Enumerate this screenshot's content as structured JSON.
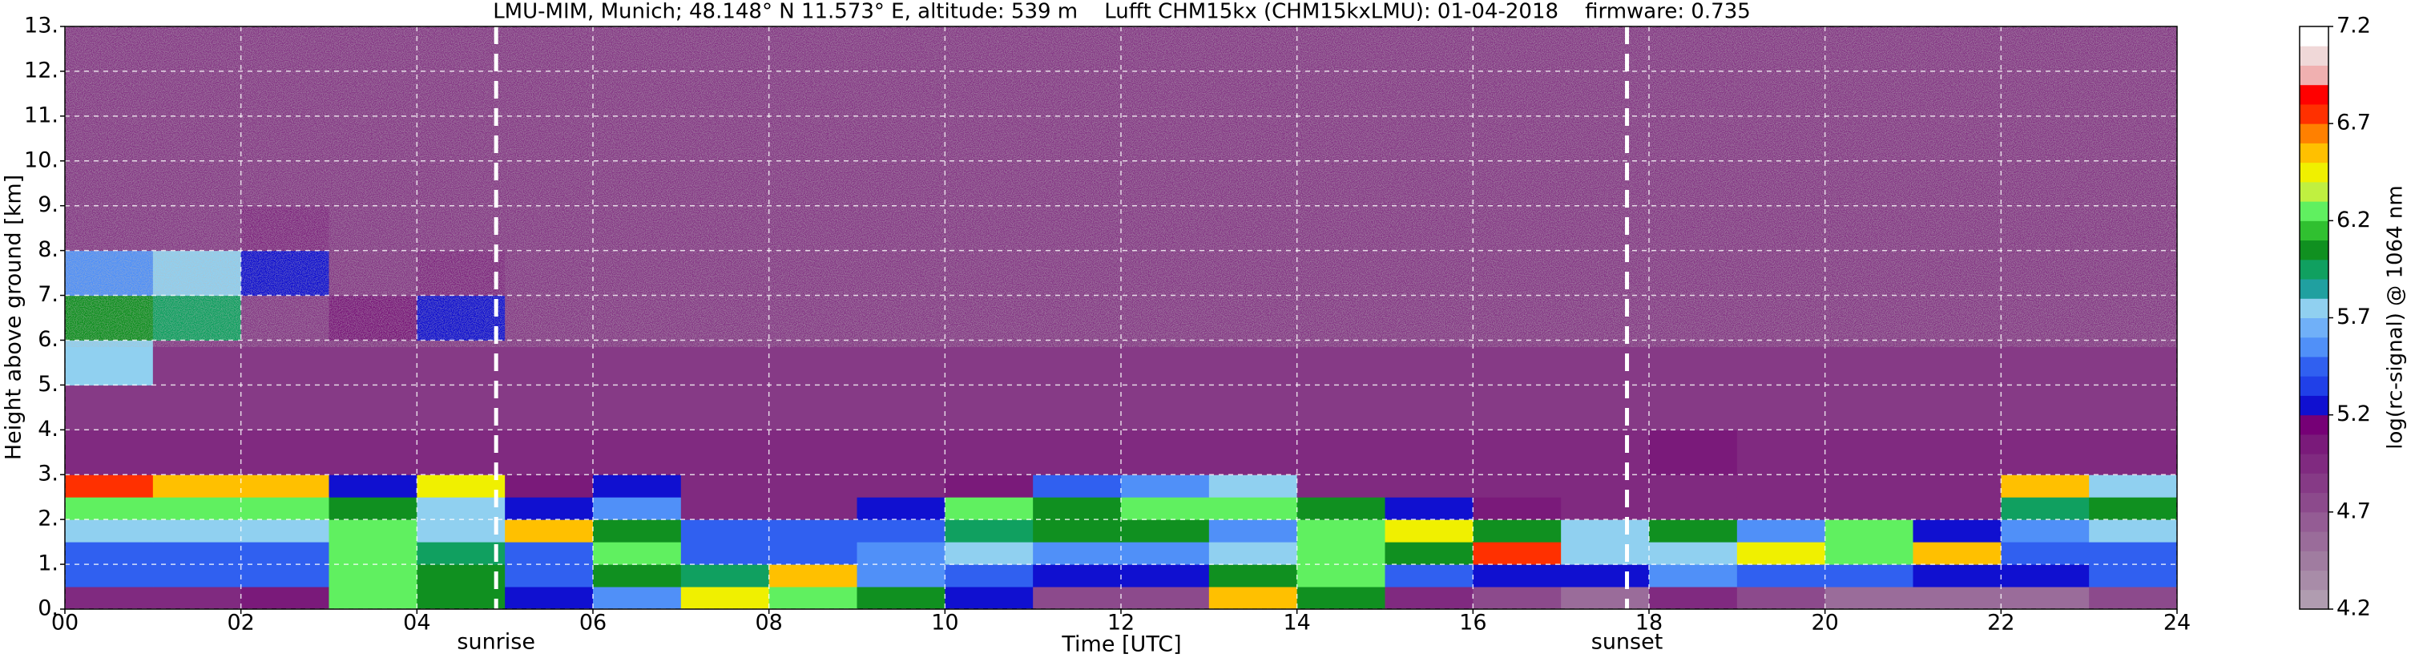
{
  "chart_data": {
    "type": "heatmap",
    "title": "LMU-MIM, Munich; 48.148° N 11.573° E, altitude: 539 m    Lufft CHM15kx (CHM15kxLMU): 01-04-2018    firmware: 0.735",
    "xlabel": "Time [UTC]",
    "ylabel": "Height above ground [km]",
    "colorbar_label": "log(rc-signal) @ 1064 nm",
    "xlim": [
      0,
      24
    ],
    "ylim": [
      0,
      13
    ],
    "xticks": [
      {
        "value": 0,
        "label": "00"
      },
      {
        "value": 2,
        "label": "02"
      },
      {
        "value": 4,
        "label": "04"
      },
      {
        "value": 6,
        "label": "06"
      },
      {
        "value": 8,
        "label": "08"
      },
      {
        "value": 10,
        "label": "10"
      },
      {
        "value": 12,
        "label": "12"
      },
      {
        "value": 14,
        "label": "14"
      },
      {
        "value": 16,
        "label": "16"
      },
      {
        "value": 18,
        "label": "18"
      },
      {
        "value": 20,
        "label": "20"
      },
      {
        "value": 22,
        "label": "22"
      },
      {
        "value": 24,
        "label": "24"
      }
    ],
    "yticks": [
      {
        "value": 0,
        "label": "0."
      },
      {
        "value": 1,
        "label": "1."
      },
      {
        "value": 2,
        "label": "2."
      },
      {
        "value": 3,
        "label": "3."
      },
      {
        "value": 4,
        "label": "4."
      },
      {
        "value": 5,
        "label": "5."
      },
      {
        "value": 6,
        "label": "6."
      },
      {
        "value": 7,
        "label": "7."
      },
      {
        "value": 8,
        "label": "8."
      },
      {
        "value": 9,
        "label": "9."
      },
      {
        "value": 10,
        "label": "10."
      },
      {
        "value": 11,
        "label": "11."
      },
      {
        "value": 12,
        "label": "12."
      },
      {
        "value": 13,
        "label": "13."
      }
    ],
    "grid": true,
    "clim": [
      4.2,
      7.2
    ],
    "cticks": [
      4.2,
      4.7,
      5.2,
      5.7,
      6.2,
      6.7,
      7.2
    ],
    "colormap": [
      "#b09cb0",
      "#a88ca8",
      "#a07ca0",
      "#9a6c9a",
      "#945c94",
      "#8c4a8c",
      "#863a86",
      "#802a80",
      "#7a1a7a",
      "#760076",
      "#1010d0",
      "#2040e8",
      "#3060f0",
      "#5090f8",
      "#70b0f8",
      "#90d0f0",
      "#20a0a0",
      "#10a060",
      "#109020",
      "#30c030",
      "#60f060",
      "#c0f040",
      "#f0f000",
      "#ffc000",
      "#ff8000",
      "#ff3000",
      "#ff0000",
      "#f0b0b0",
      "#f0d8d8",
      "#ffffff"
    ],
    "annotations": [
      {
        "text": "sunrise",
        "x": 4.9
      },
      {
        "text": "sunset",
        "x": 17.75
      }
    ],
    "x_edges": [
      0,
      1,
      2,
      3,
      4,
      5,
      6,
      7,
      8,
      9,
      10,
      11,
      12,
      13,
      14,
      15,
      16,
      17,
      18,
      19,
      20,
      21,
      22,
      23,
      24
    ],
    "y_edges": [
      0,
      0.5,
      1,
      1.5,
      2,
      2.5,
      3,
      4,
      5,
      6,
      7,
      8,
      9,
      10,
      11,
      12,
      13
    ],
    "z": [
      [
        5.0,
        5.0,
        5.1,
        6.2,
        6.0,
        5.3,
        5.6,
        6.4,
        6.3,
        6.0,
        5.2,
        4.8,
        4.7,
        6.6,
        6.0,
        4.9,
        4.7,
        4.6,
        5.0,
        4.7,
        4.6,
        4.6,
        4.6,
        4.7
      ],
      [
        5.4,
        5.4,
        5.4,
        6.3,
        6.0,
        5.4,
        6.0,
        5.9,
        6.6,
        5.6,
        5.4,
        5.3,
        5.3,
        6.0,
        6.3,
        5.4,
        5.3,
        5.3,
        5.6,
        5.4,
        5.4,
        5.3,
        5.3,
        5.4
      ],
      [
        5.5,
        5.5,
        5.5,
        6.2,
        5.9,
        5.5,
        6.3,
        5.5,
        5.5,
        5.6,
        5.7,
        5.6,
        5.6,
        5.7,
        6.3,
        6.0,
        6.7,
        5.8,
        5.8,
        6.4,
        6.3,
        6.6,
        5.5,
        5.5
      ],
      [
        5.7,
        5.7,
        5.7,
        6.3,
        5.8,
        6.6,
        6.0,
        5.4,
        5.4,
        5.5,
        5.9,
        6.0,
        6.0,
        5.6,
        6.2,
        6.4,
        6.0,
        5.7,
        6.0,
        5.6,
        6.2,
        5.2,
        5.6,
        5.8
      ],
      [
        6.3,
        6.2,
        6.3,
        6.0,
        5.7,
        5.3,
        5.6,
        5.0,
        5.0,
        5.3,
        6.2,
        6.1,
        6.2,
        6.3,
        6.0,
        5.3,
        5.1,
        5.0,
        5.0,
        5.0,
        5.0,
        5.0,
        5.9,
        6.0
      ],
      [
        6.7,
        6.6,
        6.6,
        5.3,
        6.4,
        5.1,
        5.2,
        4.9,
        4.9,
        5.0,
        5.1,
        5.5,
        5.6,
        5.8,
        4.9,
        4.9,
        4.9,
        4.9,
        4.9,
        4.9,
        4.9,
        4.9,
        6.5,
        5.8
      ],
      [
        4.9,
        4.9,
        4.9,
        4.9,
        4.9,
        4.9,
        4.9,
        4.9,
        4.9,
        4.9,
        4.9,
        4.9,
        4.9,
        5.0,
        4.9,
        4.9,
        4.9,
        4.9,
        5.1,
        4.9,
        4.9,
        4.9,
        4.9,
        4.9
      ],
      [
        4.85,
        4.85,
        4.85,
        4.85,
        4.85,
        4.85,
        4.85,
        4.85,
        4.85,
        4.85,
        4.85,
        4.85,
        4.85,
        4.85,
        4.85,
        4.85,
        4.85,
        4.85,
        4.85,
        4.85,
        4.85,
        4.85,
        4.85,
        4.85
      ],
      [
        5.8,
        4.85,
        4.85,
        4.85,
        4.85,
        4.85,
        4.85,
        4.85,
        4.85,
        4.85,
        4.85,
        4.85,
        4.85,
        4.85,
        4.85,
        4.85,
        4.85,
        4.85,
        4.85,
        4.85,
        4.85,
        4.85,
        4.85,
        4.85
      ],
      [
        6.0,
        5.9,
        4.85,
        5.1,
        5.3,
        4.85,
        4.85,
        4.85,
        4.85,
        4.85,
        4.85,
        4.85,
        4.85,
        4.85,
        4.85,
        4.85,
        4.85,
        4.85,
        4.85,
        4.85,
        4.85,
        4.85,
        4.85,
        4.85
      ],
      [
        5.6,
        5.7,
        5.2,
        4.85,
        5.0,
        4.85,
        4.85,
        4.85,
        4.85,
        4.85,
        4.85,
        4.85,
        4.85,
        4.85,
        4.85,
        4.85,
        4.85,
        4.85,
        4.85,
        4.85,
        4.85,
        4.85,
        4.85,
        4.85
      ],
      [
        4.85,
        4.85,
        5.0,
        4.85,
        4.85,
        4.85,
        4.85,
        4.85,
        4.85,
        4.85,
        4.85,
        4.85,
        4.85,
        4.85,
        4.85,
        4.85,
        4.85,
        4.85,
        4.85,
        4.85,
        4.85,
        4.85,
        4.85,
        4.85
      ],
      [
        4.85,
        4.85,
        4.85,
        4.85,
        4.85,
        4.85,
        4.85,
        4.85,
        4.85,
        4.85,
        4.85,
        4.85,
        4.85,
        4.85,
        4.85,
        4.85,
        4.85,
        4.85,
        4.85,
        4.85,
        4.85,
        4.85,
        4.85,
        4.85
      ],
      [
        4.85,
        4.85,
        4.85,
        4.85,
        4.85,
        4.85,
        4.85,
        4.85,
        4.85,
        4.85,
        4.85,
        4.85,
        4.85,
        4.85,
        4.85,
        4.85,
        4.85,
        4.85,
        4.85,
        4.85,
        4.85,
        4.85,
        4.85,
        4.85
      ],
      [
        4.85,
        4.85,
        4.85,
        4.85,
        4.85,
        4.85,
        4.85,
        4.85,
        4.85,
        4.85,
        4.85,
        4.85,
        4.85,
        4.85,
        4.85,
        4.85,
        4.85,
        4.85,
        4.85,
        4.85,
        4.85,
        4.85,
        4.85,
        4.85
      ],
      [
        4.85,
        4.85,
        4.85,
        4.85,
        4.85,
        4.85,
        4.85,
        4.85,
        4.85,
        4.85,
        4.85,
        4.85,
        4.85,
        4.85,
        4.85,
        4.85,
        4.85,
        4.85,
        4.85,
        4.85,
        4.85,
        4.85,
        4.85,
        4.85
      ]
    ]
  }
}
